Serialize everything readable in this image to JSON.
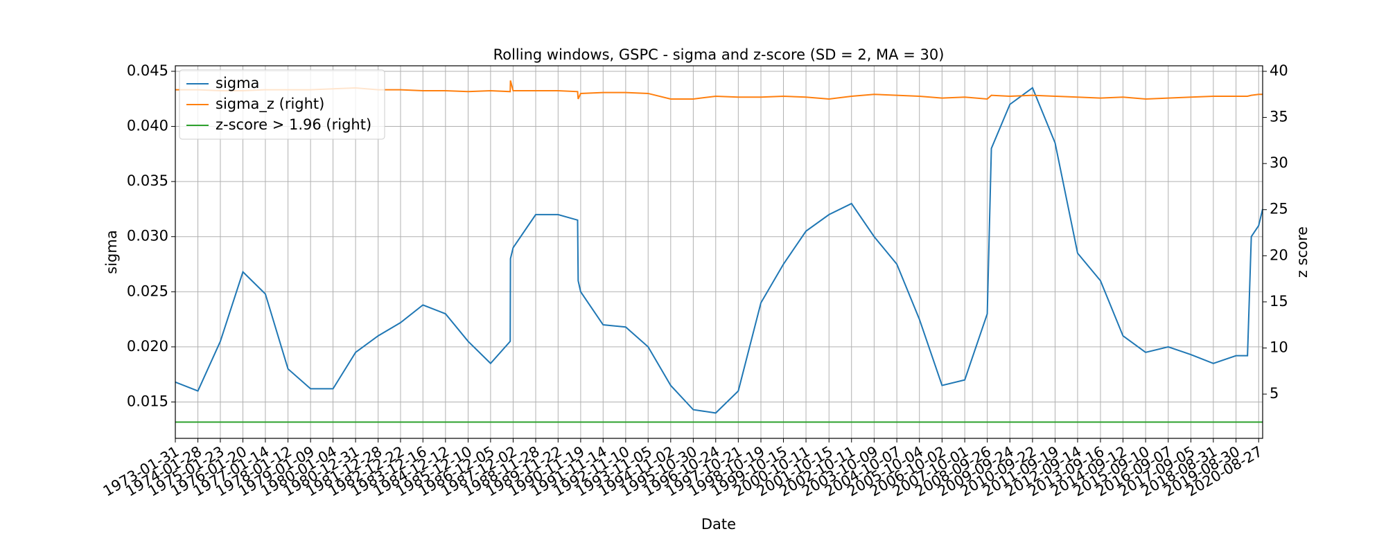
{
  "chart_data": {
    "type": "line",
    "title": "Rolling windows, GSPC - sigma and z-score (SD = 2, MA = 30)",
    "xlabel": "Date",
    "ylabel": "sigma",
    "y2label": "z score",
    "x": [
      "1973-01-31",
      "1974-01-28",
      "1975-01-23",
      "1976-01-20",
      "1977-01-14",
      "1978-01-12",
      "1979-01-09",
      "1980-01-04",
      "1980-12-31",
      "1981-12-28",
      "1982-12-22",
      "1983-12-16",
      "1984-12-12",
      "1985-12-10",
      "1986-12-05",
      "1987-10-16",
      "1987-10-20",
      "1987-12-02",
      "1988-11-28",
      "1989-11-22",
      "1990-10-01",
      "1990-10-10",
      "1990-11-19",
      "1991-11-14",
      "1992-11-10",
      "1993-11-05",
      "1994-11-02",
      "1995-10-30",
      "1996-10-24",
      "1997-10-21",
      "1998-10-19",
      "1999-10-15",
      "2000-10-11",
      "2001-10-15",
      "2002-10-11",
      "2003-10-09",
      "2004-10-07",
      "2005-10-04",
      "2006-10-02",
      "2007-10-01",
      "2008-09-26",
      "2008-12-01",
      "2009-09-24",
      "2010-09-22",
      "2011-09-19",
      "2012-09-14",
      "2013-09-16",
      "2014-09-12",
      "2015-09-10",
      "2016-09-07",
      "2017-09-05",
      "2018-08-31",
      "2019-08-30",
      "2020-03-01",
      "2020-05-01",
      "2020-08-27",
      "2020-10-30"
    ],
    "series": [
      {
        "name": "sigma",
        "color": "#1f77b4",
        "axis": "y",
        "values": [
          0.0168,
          0.016,
          0.0205,
          0.0268,
          0.0248,
          0.018,
          0.0162,
          0.0162,
          0.0195,
          0.021,
          0.0222,
          0.0238,
          0.023,
          0.0205,
          0.0185,
          0.0205,
          0.028,
          0.029,
          0.032,
          0.032,
          0.0315,
          0.026,
          0.025,
          0.022,
          0.0218,
          0.02,
          0.0165,
          0.0143,
          0.014,
          0.016,
          0.024,
          0.0275,
          0.0305,
          0.032,
          0.033,
          0.03,
          0.0275,
          0.0225,
          0.0165,
          0.017,
          0.023,
          0.038,
          0.042,
          0.0435,
          0.0385,
          0.0285,
          0.026,
          0.021,
          0.0195,
          0.02,
          0.0193,
          0.0185,
          0.0192,
          0.0192,
          0.03,
          0.031,
          0.0325
        ]
      },
      {
        "name": "sigma_z (right)",
        "color": "#ff7f0e",
        "axis": "y2",
        "values": [
          38.0,
          38.0,
          37.9,
          37.9,
          38.0,
          38.0,
          38.0,
          38.1,
          38.2,
          38.0,
          38.0,
          37.9,
          37.9,
          37.8,
          37.9,
          37.8,
          39.0,
          37.9,
          37.9,
          37.9,
          37.8,
          37.0,
          37.6,
          37.7,
          37.7,
          37.6,
          37.0,
          37.0,
          37.3,
          37.2,
          37.2,
          37.3,
          37.2,
          37.0,
          37.3,
          37.5,
          37.4,
          37.3,
          37.1,
          37.2,
          37.0,
          37.4,
          37.3,
          37.4,
          37.3,
          37.2,
          37.1,
          37.2,
          37.0,
          37.1,
          37.2,
          37.3,
          37.3,
          37.3,
          37.4,
          37.5,
          37.5
        ]
      }
    ],
    "threshold": {
      "name": "z-score > 1.96 (right)",
      "color": "#2ca02c",
      "axis": "y2",
      "value": 1.96
    },
    "xlim": [
      "1973-01-31",
      "2020-10-30"
    ],
    "xticks": [
      "1973-01-31",
      "1974-01-28",
      "1975-01-23",
      "1976-01-20",
      "1977-01-14",
      "1978-01-12",
      "1979-01-09",
      "1980-01-04",
      "1980-12-31",
      "1981-12-28",
      "1982-12-22",
      "1983-12-16",
      "1984-12-12",
      "1985-12-10",
      "1986-12-05",
      "1987-12-02",
      "1988-11-28",
      "1989-11-22",
      "1990-11-19",
      "1991-11-14",
      "1992-11-10",
      "1993-11-05",
      "1994-11-02",
      "1995-10-30",
      "1996-10-24",
      "1997-10-21",
      "1998-10-19",
      "1999-10-15",
      "2000-10-11",
      "2001-10-15",
      "2002-10-11",
      "2003-10-09",
      "2004-10-07",
      "2005-10-04",
      "2006-10-02",
      "2007-10-01",
      "2008-09-26",
      "2009-09-24",
      "2010-09-22",
      "2011-09-19",
      "2012-09-14",
      "2013-09-16",
      "2014-09-12",
      "2015-09-10",
      "2016-09-07",
      "2017-09-05",
      "2018-08-31",
      "2019-08-30",
      "2020-08-27"
    ],
    "ylim": [
      0.0117,
      0.0455
    ],
    "yticks": [
      0.015,
      {
        "value": 0.02,
        "label": "0.020"
      },
      0.025,
      {
        "value": 0.03,
        "label": "0.030"
      },
      0.035,
      {
        "value": 0.04,
        "label": "0.040"
      },
      0.045
    ],
    "y2lim": [
      0.2,
      40.6
    ],
    "y2ticks": [
      5,
      10,
      15,
      20,
      25,
      30,
      35,
      40
    ],
    "grid": true,
    "legend": "upper left"
  }
}
